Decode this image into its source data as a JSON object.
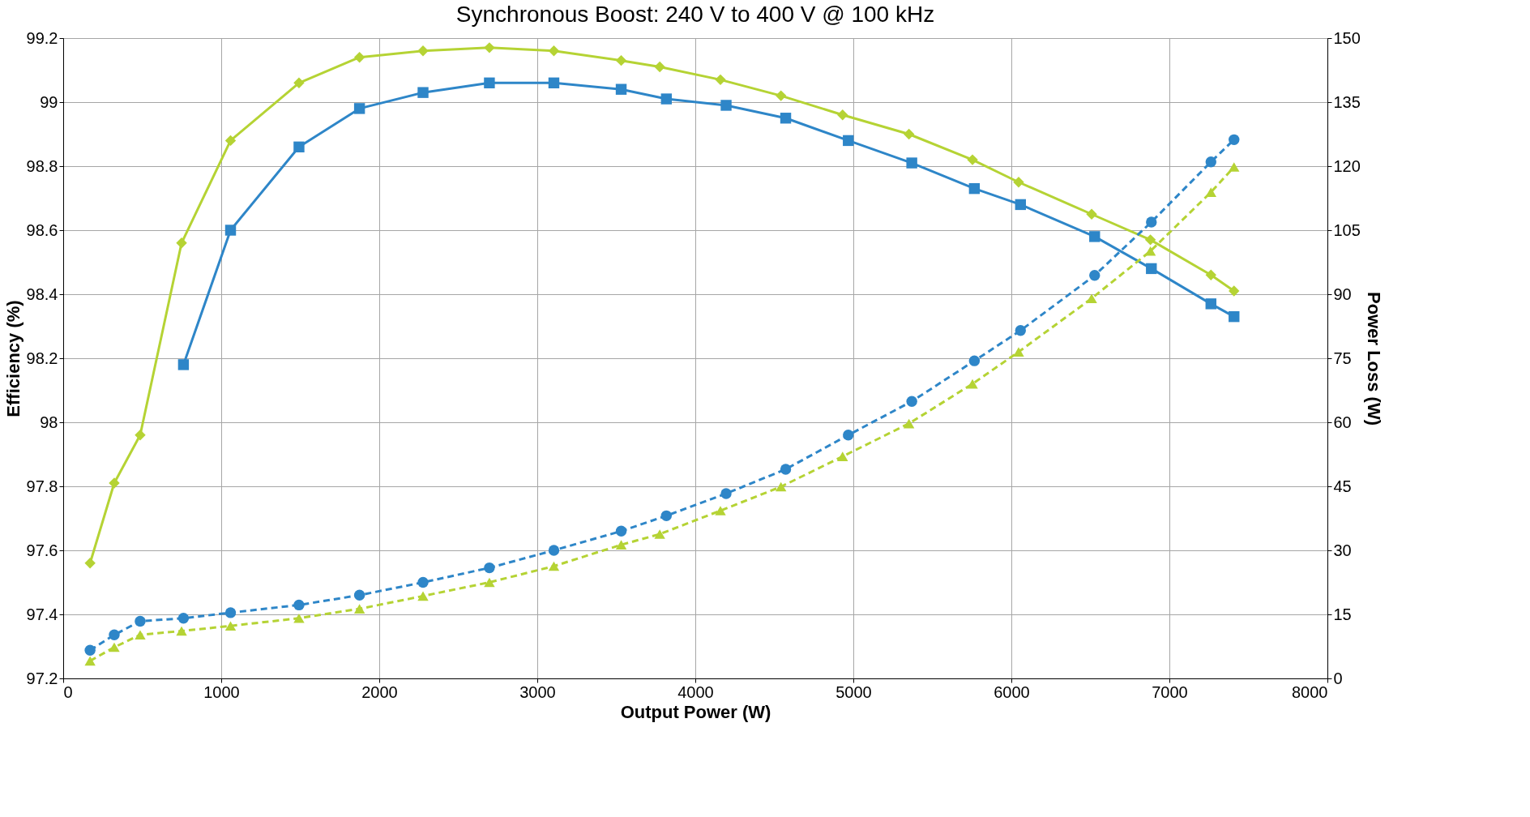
{
  "chart_data": {
    "type": "line",
    "title": "Synchronous Boost: 240 V to 400 V @ 100 kHz",
    "xlabel": "Output Power (W)",
    "ylabel": "Efficiency (%)",
    "y2label": "Power Loss (W)",
    "xlim": [
      0,
      8000
    ],
    "xticks": [
      0,
      1000,
      2000,
      3000,
      4000,
      5000,
      6000,
      7000,
      8000
    ],
    "ylim": [
      97.2,
      99.2
    ],
    "yticks": [
      97.2,
      97.4,
      97.6,
      97.8,
      98,
      98.2,
      98.4,
      98.6,
      98.8,
      99,
      99.2
    ],
    "y2lim": [
      0,
      150
    ],
    "y2ticks": [
      0,
      15,
      30,
      45,
      60,
      75,
      90,
      105,
      120,
      135,
      150
    ],
    "grid": true,
    "series": [
      {
        "color": "#2e86c8",
        "marker": "square",
        "line_style": "solid",
        "axis": "y",
        "x": [
          761,
          1059,
          1492,
          1875,
          2277,
          2697,
          3105,
          3531,
          3817,
          4195,
          4572,
          4968,
          5370,
          5766,
          6058,
          6527,
          6886,
          7263,
          7409
        ],
        "values": [
          98.18,
          98.6,
          98.86,
          98.98,
          99.03,
          99.06,
          99.06,
          99.04,
          99.01,
          98.99,
          98.95,
          98.88,
          98.81,
          98.73,
          98.68,
          98.58,
          98.48,
          98.37,
          98.33
        ]
      },
      {
        "color": "#b5d334",
        "marker": "diamond",
        "line_style": "solid",
        "axis": "y",
        "x": [
          170,
          323,
          487,
          749,
          1059,
          1492,
          1875,
          2277,
          2697,
          3105,
          3531,
          3775,
          4159,
          4542,
          4932,
          5352,
          5754,
          6046,
          6508,
          6880,
          7263,
          7409
        ],
        "values": [
          97.56,
          97.81,
          97.96,
          98.56,
          98.88,
          99.06,
          99.14,
          99.16,
          99.17,
          99.16,
          99.13,
          99.11,
          99.07,
          99.02,
          98.96,
          98.9,
          98.82,
          98.75,
          98.65,
          98.57,
          98.46,
          98.41
        ]
      },
      {
        "color": "#2e86c8",
        "marker": "circle",
        "line_style": "dashed",
        "axis": "y2",
        "x": [
          170,
          323,
          487,
          761,
          1059,
          1492,
          1875,
          2277,
          2697,
          3105,
          3531,
          3817,
          4195,
          4572,
          4968,
          5370,
          5766,
          6058,
          6527,
          6886,
          7263,
          7409
        ],
        "values": [
          6.6,
          10.2,
          13.4,
          14.1,
          15.4,
          17.2,
          19.5,
          22.5,
          25.9,
          30,
          34.5,
          38.1,
          43.3,
          49,
          57,
          64.9,
          74.4,
          81.5,
          94.4,
          106.9,
          121,
          126.2
        ]
      },
      {
        "color": "#b5d334",
        "marker": "triangle",
        "line_style": "dashed",
        "axis": "y2",
        "x": [
          170,
          323,
          487,
          749,
          1059,
          1492,
          1875,
          2277,
          2697,
          3105,
          3531,
          3775,
          4159,
          4542,
          4932,
          5352,
          5754,
          6046,
          6508,
          6880,
          7263,
          7409
        ],
        "values": [
          4.1,
          7.3,
          10.2,
          11.1,
          12.3,
          14.1,
          16.3,
          19.3,
          22.5,
          26.3,
          31.3,
          33.8,
          39.3,
          44.9,
          52,
          59.7,
          69,
          76.5,
          89,
          100.1,
          113.9,
          119.8
        ]
      }
    ]
  }
}
